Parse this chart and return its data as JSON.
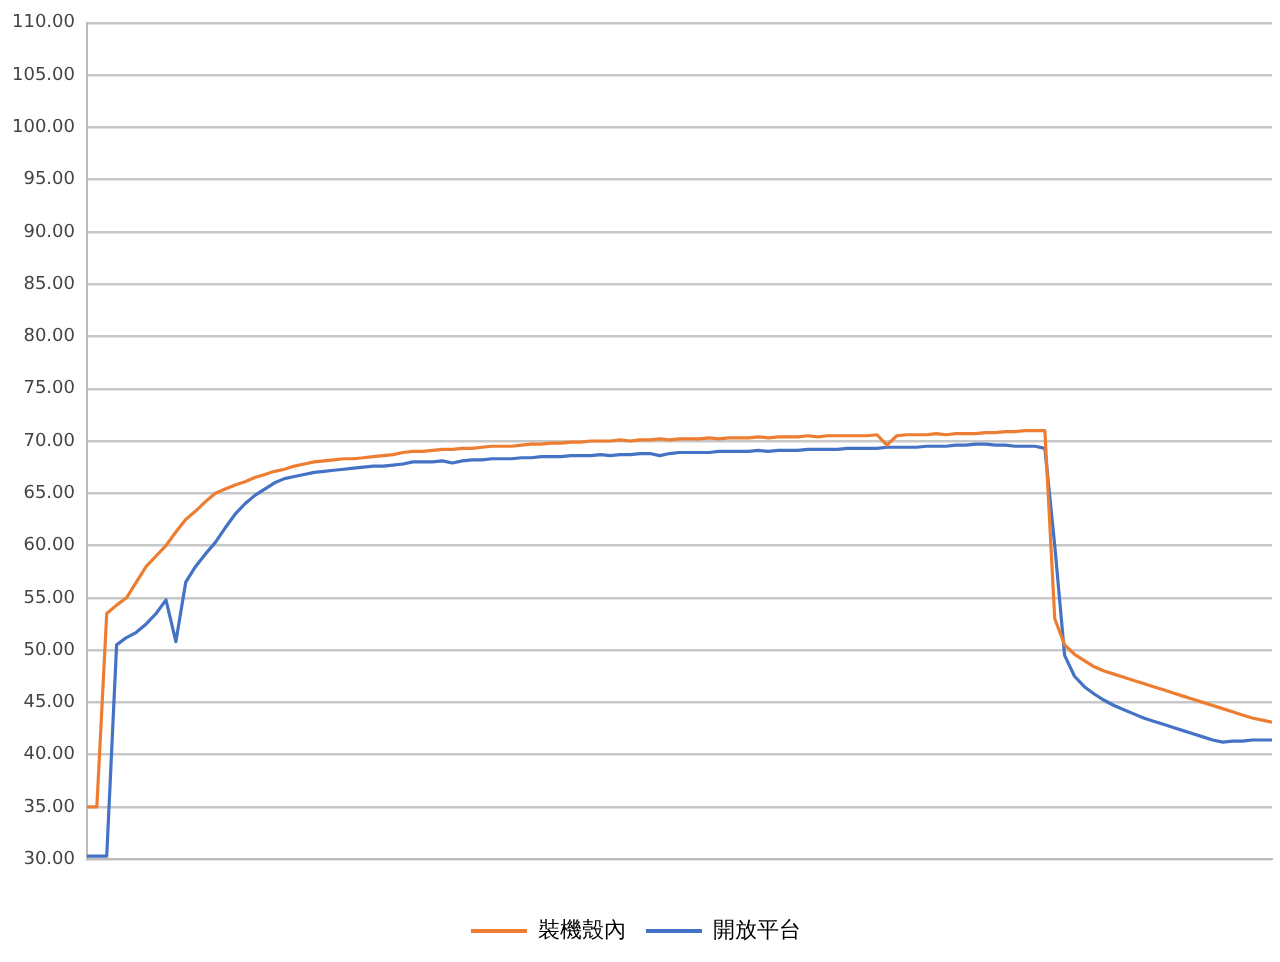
{
  "chart_data": {
    "type": "line",
    "categories": [
      null,
      null,
      null,
      null,
      null,
      null,
      null,
      null,
      null,
      null,
      null,
      null,
      null,
      null,
      null,
      null,
      null,
      null,
      null,
      null,
      null,
      null,
      null,
      null,
      null,
      null,
      null,
      null,
      null,
      null,
      null,
      null,
      null,
      null,
      null,
      null,
      null,
      null,
      null,
      null,
      null,
      null,
      null,
      null,
      null,
      null,
      null,
      null,
      null,
      null,
      null,
      null,
      null,
      null,
      null,
      null,
      null,
      null,
      null,
      null,
      null,
      null,
      null,
      null,
      null,
      null,
      null,
      null,
      null,
      null,
      null,
      null,
      null,
      null,
      null,
      null,
      null,
      null,
      null,
      null,
      null,
      null,
      null,
      null,
      null,
      null,
      null,
      null,
      null,
      null,
      null,
      null,
      null,
      null,
      null,
      null,
      null,
      null,
      null,
      null,
      null,
      null,
      null,
      null,
      null,
      null,
      null,
      null,
      null,
      null,
      null,
      null,
      null,
      null,
      null,
      null,
      null,
      null,
      null,
      null,
      null
    ],
    "series": [
      {
        "name": "裝機殼內",
        "color": "#ed7d31",
        "values": [
          35,
          35,
          53.5,
          54.3,
          55,
          56.5,
          58,
          59,
          60,
          61.3,
          62.5,
          63.3,
          64.2,
          65,
          65.4,
          65.8,
          66.1,
          66.5,
          66.8,
          67.1,
          67.3,
          67.6,
          67.8,
          68,
          68.1,
          68.2,
          68.3,
          68.3,
          68.4,
          68.5,
          68.6,
          68.7,
          68.9,
          69,
          69,
          69.1,
          69.2,
          69.2,
          69.3,
          69.3,
          69.4,
          69.5,
          69.5,
          69.5,
          69.6,
          69.7,
          69.7,
          69.8,
          69.8,
          69.9,
          69.9,
          70.0,
          70.0,
          70.0,
          70.1,
          70.0,
          70.1,
          70.1,
          70.2,
          70.1,
          70.2,
          70.2,
          70.2,
          70.3,
          70.2,
          70.3,
          70.3,
          70.3,
          70.4,
          70.3,
          70.4,
          70.4,
          70.4,
          70.5,
          70.4,
          70.5,
          70.5,
          70.5,
          70.5,
          70.5,
          70.6,
          69.6,
          70.5,
          70.6,
          70.6,
          70.6,
          70.7,
          70.6,
          70.7,
          70.7,
          70.7,
          70.8,
          70.8,
          70.9,
          70.9,
          71.0,
          71.0,
          71,
          53,
          50.5,
          49.6,
          49,
          48.4,
          48,
          47.7,
          47.4,
          47.1,
          46.8,
          46.5,
          46.2,
          45.9,
          45.6,
          45.3,
          45,
          44.7,
          44.4,
          44.1,
          43.8,
          43.5,
          43.3,
          43.1
        ]
      },
      {
        "name": "開放平台",
        "color": "#4472c4",
        "values": [
          30.3,
          30.3,
          30.3,
          50.5,
          51.2,
          51.7,
          52.5,
          53.5,
          54.8,
          50.8,
          56.5,
          58,
          59.2,
          60.3,
          61.7,
          63,
          64,
          64.8,
          65.4,
          66,
          66.4,
          66.6,
          66.8,
          67,
          67.1,
          67.2,
          67.3,
          67.4,
          67.5,
          67.6,
          67.6,
          67.7,
          67.8,
          68,
          68,
          68,
          68.1,
          67.9,
          68.1,
          68.2,
          68.2,
          68.3,
          68.3,
          68.3,
          68.4,
          68.4,
          68.5,
          68.5,
          68.5,
          68.6,
          68.6,
          68.6,
          68.7,
          68.6,
          68.7,
          68.7,
          68.8,
          68.8,
          68.6,
          68.8,
          68.9,
          68.9,
          68.9,
          68.9,
          69.0,
          69.0,
          69.0,
          69.0,
          69.1,
          69.0,
          69.1,
          69.1,
          69.1,
          69.2,
          69.2,
          69.2,
          69.2,
          69.3,
          69.3,
          69.3,
          69.3,
          69.4,
          69.4,
          69.4,
          69.4,
          69.5,
          69.5,
          69.5,
          69.6,
          69.6,
          69.7,
          69.7,
          69.6,
          69.6,
          69.5,
          69.5,
          69.5,
          69.3,
          60,
          49.5,
          47.5,
          46.5,
          45.8,
          45.2,
          44.7,
          44.3,
          43.9,
          43.5,
          43.2,
          42.9,
          42.6,
          42.3,
          42,
          41.7,
          41.4,
          41.2,
          41.3,
          41.3,
          41.4,
          41.4,
          41.4
        ]
      }
    ],
    "ylim": [
      30,
      110
    ],
    "yticks": [
      {
        "value": 30,
        "label": "30.00"
      },
      {
        "value": 35,
        "label": "35.00"
      },
      {
        "value": 40,
        "label": "40.00"
      },
      {
        "value": 45,
        "label": "45.00"
      },
      {
        "value": 50,
        "label": "50.00"
      },
      {
        "value": 55,
        "label": "55.00"
      },
      {
        "value": 60,
        "label": "60.00"
      },
      {
        "value": 65,
        "label": "65.00"
      },
      {
        "value": 70,
        "label": "70.00"
      },
      {
        "value": 75,
        "label": "75.00"
      },
      {
        "value": 80,
        "label": "80.00"
      },
      {
        "value": 85,
        "label": "85.00"
      },
      {
        "value": 90,
        "label": "90.00"
      },
      {
        "value": 95,
        "label": "95.00"
      },
      {
        "value": 100,
        "label": "100.00"
      },
      {
        "value": 105,
        "label": "105.00"
      },
      {
        "value": 110,
        "label": "110.00"
      }
    ],
    "grid": "y",
    "legend": "bottom",
    "marker": "none",
    "line_style": "solid"
  }
}
